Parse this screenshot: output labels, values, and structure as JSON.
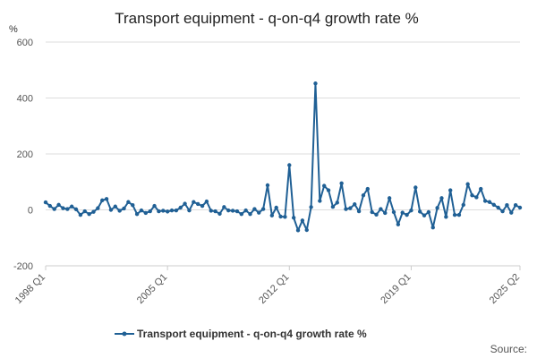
{
  "chart_data": {
    "type": "line",
    "title": "Transport equipment - q-on-q4 growth rate %",
    "ylabel": "%",
    "xlabel": "",
    "ylim": [
      -200,
      600
    ],
    "y_ticks": [
      "-200",
      "0",
      "200",
      "400",
      "600"
    ],
    "x_tick_labels": [
      "1998 Q1",
      "2005 Q1",
      "2012 Q1",
      "2019 Q1",
      "2025 Q2"
    ],
    "grid": true,
    "legend_position": "bottom",
    "series": [
      {
        "name": "Transport equipment - q-on-q4 growth rate %",
        "color": "#206095",
        "start": "1998 Q1",
        "end": "2025 Q2",
        "values": [
          27,
          14,
          3,
          18,
          6,
          3,
          12,
          2,
          -18,
          -5,
          -15,
          -7,
          6,
          34,
          39,
          0,
          12,
          -3,
          5,
          28,
          17,
          -15,
          -2,
          -11,
          -5,
          14,
          -5,
          -3,
          -6,
          -2,
          -2,
          8,
          22,
          -2,
          28,
          21,
          14,
          30,
          -3,
          -5,
          -14,
          10,
          -2,
          -3,
          -5,
          -15,
          -2,
          -15,
          3,
          -10,
          3,
          88,
          -20,
          8,
          -24,
          -25,
          160,
          -28,
          -73,
          -38,
          -72,
          10,
          452,
          32,
          86,
          70,
          11,
          26,
          95,
          3,
          6,
          20,
          -5,
          52,
          75,
          -8,
          -17,
          3,
          -11,
          42,
          -8,
          -52,
          -10,
          -18,
          -2,
          80,
          -6,
          -20,
          -8,
          -63,
          7,
          42,
          -25,
          70,
          -18,
          -18,
          18,
          92,
          52,
          45,
          75,
          32,
          28,
          18,
          8,
          -5,
          17,
          -10,
          17,
          8
        ]
      }
    ]
  },
  "footer": {
    "source_label": "Source:"
  }
}
